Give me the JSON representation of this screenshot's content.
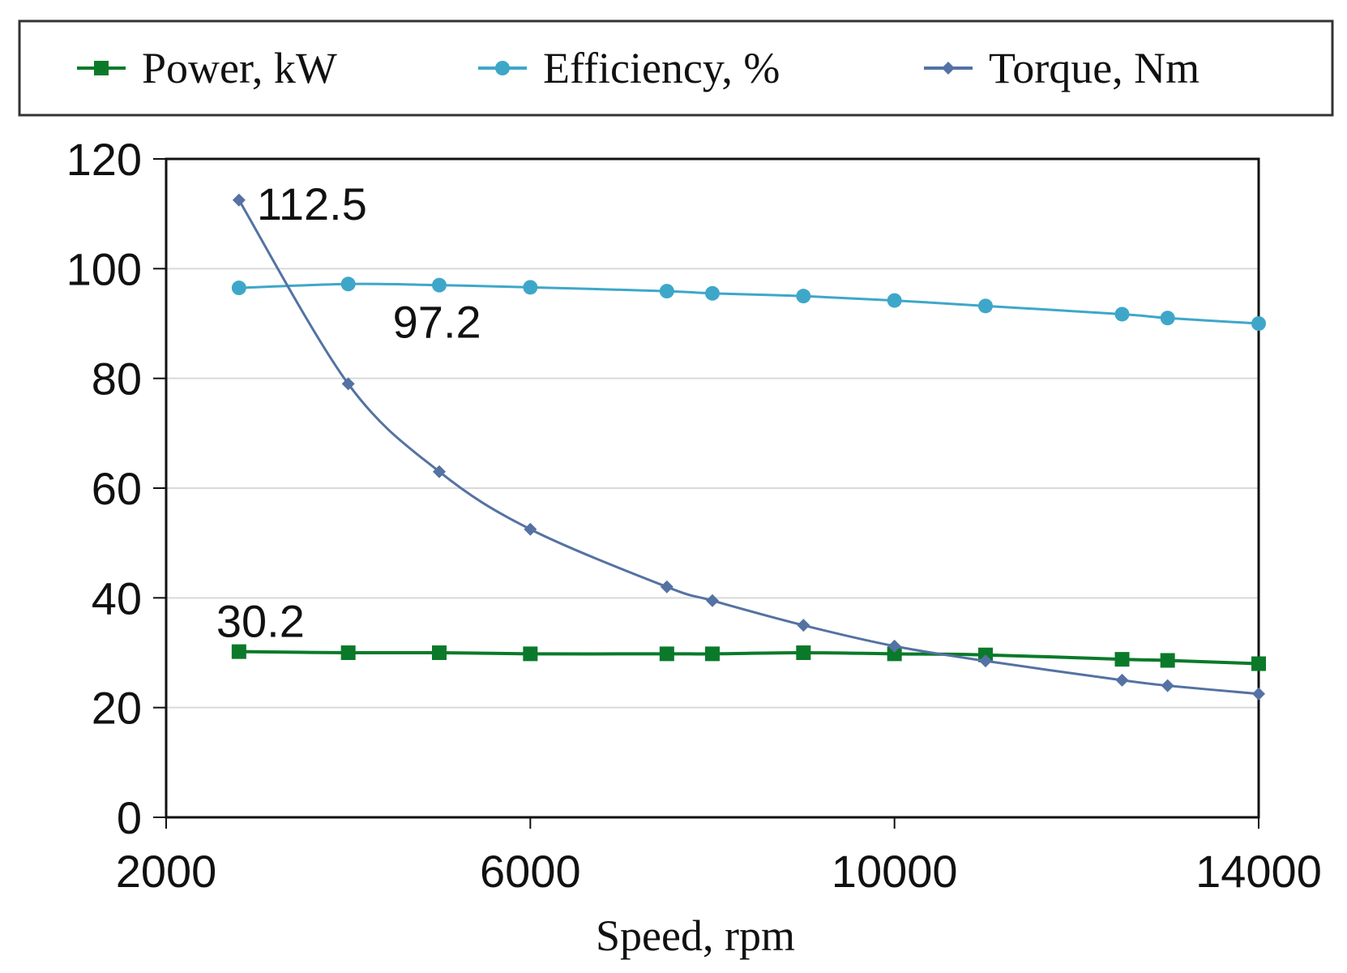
{
  "chart_data": {
    "type": "line",
    "title": "",
    "xlabel": "Speed, rpm",
    "ylabel": "",
    "xlim": [
      2000,
      14000
    ],
    "ylim": [
      0,
      120
    ],
    "x_ticks": [
      2000,
      6000,
      10000,
      14000
    ],
    "y_ticks": [
      0,
      20,
      40,
      60,
      80,
      100,
      120
    ],
    "grid": "horizontal",
    "legend_position": "top",
    "x": [
      2800,
      4000,
      5000,
      6000,
      7500,
      8000,
      9000,
      10000,
      11000,
      12500,
      13000,
      14000
    ],
    "series": [
      {
        "name": "Power, kW",
        "color": "#0a7a2a",
        "marker": "square",
        "values": [
          30.2,
          30.0,
          30.0,
          29.8,
          29.8,
          29.8,
          30.0,
          29.8,
          29.6,
          28.8,
          28.6,
          28.0
        ]
      },
      {
        "name": "Efficiency, %",
        "color": "#3ea7c9",
        "marker": "circle",
        "values": [
          96.5,
          97.2,
          97.0,
          96.6,
          95.9,
          95.5,
          95.0,
          94.2,
          93.2,
          91.7,
          91.0,
          90.0
        ]
      },
      {
        "name": "Torque, Nm",
        "color": "#5472a3",
        "marker": "diamond",
        "values": [
          112.5,
          79.0,
          63.0,
          52.5,
          42.0,
          39.5,
          35.0,
          31.2,
          28.5,
          25.0,
          24.0,
          22.5
        ]
      }
    ],
    "annotations": [
      {
        "text": "112.5",
        "x": 2800,
        "y": 112.5,
        "series": "Torque, Nm"
      },
      {
        "text": "97.2",
        "x": 4000,
        "y": 97.2,
        "series": "Efficiency, %"
      },
      {
        "text": "30.2",
        "x": 2800,
        "y": 30.2,
        "series": "Power, kW"
      }
    ]
  }
}
